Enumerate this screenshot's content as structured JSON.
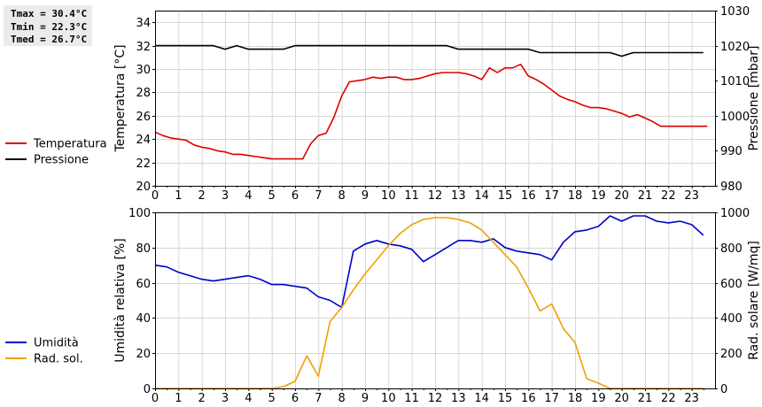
{
  "stats": {
    "tmax": "Tmax = 30.4°C",
    "tmin": "Tmin = 22.3°C",
    "tmed": "Tmed = 26.7°C"
  },
  "chart_data": [
    {
      "type": "line",
      "x_ticks": [
        "0",
        "1",
        "2",
        "3",
        "4",
        "5",
        "6",
        "7",
        "8",
        "9",
        "10",
        "11",
        "12",
        "13",
        "14",
        "15",
        "16",
        "17",
        "18",
        "19",
        "20",
        "21",
        "22",
        "23"
      ],
      "xlim": [
        0,
        24
      ],
      "ylabel": "Temperatura [°C]",
      "ylim": [
        20,
        35
      ],
      "y_ticks": [
        "20",
        "22",
        "24",
        "26",
        "28",
        "30",
        "32",
        "34"
      ],
      "y2label": "Pressione [mbar]",
      "y2lim": [
        980,
        1030
      ],
      "y2_ticks": [
        "980",
        "990",
        "1000",
        "1010",
        "1020",
        "1030"
      ],
      "grid": true,
      "legend": "left-outside",
      "series": [
        {
          "name": "Temperatura",
          "axis": "left",
          "color": "#dd0000",
          "x": [
            0,
            0.33,
            0.67,
            1,
            1.33,
            1.67,
            2,
            2.33,
            2.67,
            3,
            3.33,
            3.67,
            4,
            4.33,
            4.67,
            5,
            5.33,
            5.67,
            6,
            6.33,
            6.67,
            7,
            7.33,
            7.67,
            8,
            8.33,
            8.67,
            9,
            9.33,
            9.67,
            10,
            10.33,
            10.67,
            11,
            11.33,
            11.67,
            12,
            12.33,
            12.67,
            13,
            13.33,
            13.67,
            14,
            14.33,
            14.67,
            15,
            15.33,
            15.67,
            16,
            16.33,
            16.67,
            17,
            17.33,
            17.67,
            18,
            18.33,
            18.67,
            19,
            19.33,
            19.67,
            20,
            20.33,
            20.67,
            21,
            21.33,
            21.67,
            22,
            22.33,
            22.67,
            23,
            23.33,
            23.67
          ],
          "values": [
            24.6,
            24.3,
            24.1,
            24.0,
            23.9,
            23.5,
            23.3,
            23.2,
            23.0,
            22.9,
            22.7,
            22.7,
            22.6,
            22.5,
            22.4,
            22.3,
            22.3,
            22.3,
            22.3,
            22.3,
            23.6,
            24.3,
            24.5,
            25.9,
            27.7,
            28.9,
            29.0,
            29.1,
            29.3,
            29.2,
            29.3,
            29.3,
            29.1,
            29.1,
            29.2,
            29.4,
            29.6,
            29.7,
            29.7,
            29.7,
            29.6,
            29.4,
            29.1,
            30.1,
            29.7,
            30.1,
            30.1,
            30.4,
            29.4,
            29.1,
            28.7,
            28.2,
            27.7,
            27.4,
            27.2,
            26.9,
            26.7,
            26.7,
            26.6,
            26.4,
            26.2,
            25.9,
            26.1,
            25.8,
            25.5,
            25.1,
            25.1,
            25.1,
            25.1,
            25.1,
            25.1,
            25.1
          ]
        },
        {
          "name": "Pressione",
          "axis": "right",
          "color": "#000000",
          "x": [
            0,
            0.5,
            1,
            1.5,
            2,
            2.5,
            3,
            3.5,
            4,
            4.5,
            5,
            5.5,
            6,
            6.5,
            7,
            7.5,
            8,
            8.5,
            9,
            9.5,
            10,
            10.5,
            11,
            11.5,
            12,
            12.5,
            13,
            13.5,
            14,
            14.5,
            15,
            15.5,
            16,
            16.5,
            17,
            17.5,
            18,
            18.5,
            19,
            19.5,
            20,
            20.5,
            21,
            21.5,
            22,
            22.5,
            23,
            23.5
          ],
          "values": [
            1020,
            1020,
            1020,
            1020,
            1020,
            1020,
            1019,
            1020,
            1019,
            1019,
            1019,
            1019,
            1020,
            1020,
            1020,
            1020,
            1020,
            1020,
            1020,
            1020,
            1020,
            1020,
            1020,
            1020,
            1020,
            1020,
            1019,
            1019,
            1019,
            1019,
            1019,
            1019,
            1019,
            1018,
            1018,
            1018,
            1018,
            1018,
            1018,
            1018,
            1017,
            1018,
            1018,
            1018,
            1018,
            1018,
            1018,
            1018
          ]
        }
      ]
    },
    {
      "type": "line",
      "x_ticks": [
        "0",
        "1",
        "2",
        "3",
        "4",
        "5",
        "6",
        "7",
        "8",
        "9",
        "10",
        "11",
        "12",
        "13",
        "14",
        "15",
        "16",
        "17",
        "18",
        "19",
        "20",
        "21",
        "22",
        "23"
      ],
      "xlim": [
        0,
        24
      ],
      "ylabel": "Umidità relativa [%]",
      "ylim": [
        0,
        100
      ],
      "y_ticks": [
        "0",
        "20",
        "40",
        "60",
        "80",
        "100"
      ],
      "y2label": "Rad. solare [W/mq]",
      "y2lim": [
        0,
        1000
      ],
      "y2_ticks": [
        "0",
        "200",
        "400",
        "600",
        "800",
        "1000"
      ],
      "grid": true,
      "legend": "left-outside",
      "series": [
        {
          "name": "Umidità",
          "axis": "left",
          "color": "#0000cc",
          "x": [
            0,
            0.5,
            1,
            1.5,
            2,
            2.5,
            3,
            3.5,
            4,
            4.5,
            5,
            5.5,
            6,
            6.5,
            7,
            7.5,
            8,
            8.5,
            9,
            9.5,
            10,
            10.5,
            11,
            11.5,
            12,
            12.5,
            13,
            13.5,
            14,
            14.5,
            15,
            15.5,
            16,
            16.5,
            17,
            17.5,
            18,
            18.5,
            19,
            19.5,
            20,
            20.5,
            21,
            21.5,
            22,
            22.5,
            23,
            23.5
          ],
          "values": [
            70,
            69,
            66,
            64,
            62,
            61,
            62,
            63,
            64,
            62,
            59,
            59,
            58,
            57,
            52,
            50,
            46,
            78,
            82,
            84,
            82,
            81,
            79,
            72,
            76,
            80,
            84,
            84,
            83,
            85,
            80,
            78,
            77,
            76,
            73,
            83,
            89,
            90,
            92,
            98,
            95,
            98,
            98,
            95,
            94,
            95,
            93,
            87
          ]
        },
        {
          "name": "Rad. sol.",
          "axis": "right",
          "color": "#f0a000",
          "x": [
            0,
            0.5,
            1,
            1.5,
            2,
            2.5,
            3,
            3.5,
            4,
            4.5,
            5,
            5.5,
            6,
            6.5,
            7,
            7.5,
            8,
            8.5,
            9,
            9.5,
            10,
            10.5,
            11,
            11.5,
            12,
            12.5,
            13,
            13.5,
            14,
            14.5,
            15,
            15.5,
            16,
            16.5,
            17,
            17.5,
            18,
            18.5,
            19,
            19.5,
            20,
            20.5,
            21,
            21.5,
            22,
            22.5,
            23,
            23.5
          ],
          "values": [
            0,
            0,
            0,
            0,
            0,
            0,
            0,
            0,
            0,
            0,
            0,
            10,
            40,
            185,
            70,
            380,
            460,
            560,
            650,
            730,
            810,
            880,
            930,
            960,
            970,
            970,
            960,
            940,
            900,
            830,
            760,
            690,
            570,
            440,
            480,
            340,
            260,
            55,
            30,
            0,
            0,
            0,
            0,
            0,
            0,
            0,
            0,
            0
          ]
        }
      ]
    }
  ]
}
